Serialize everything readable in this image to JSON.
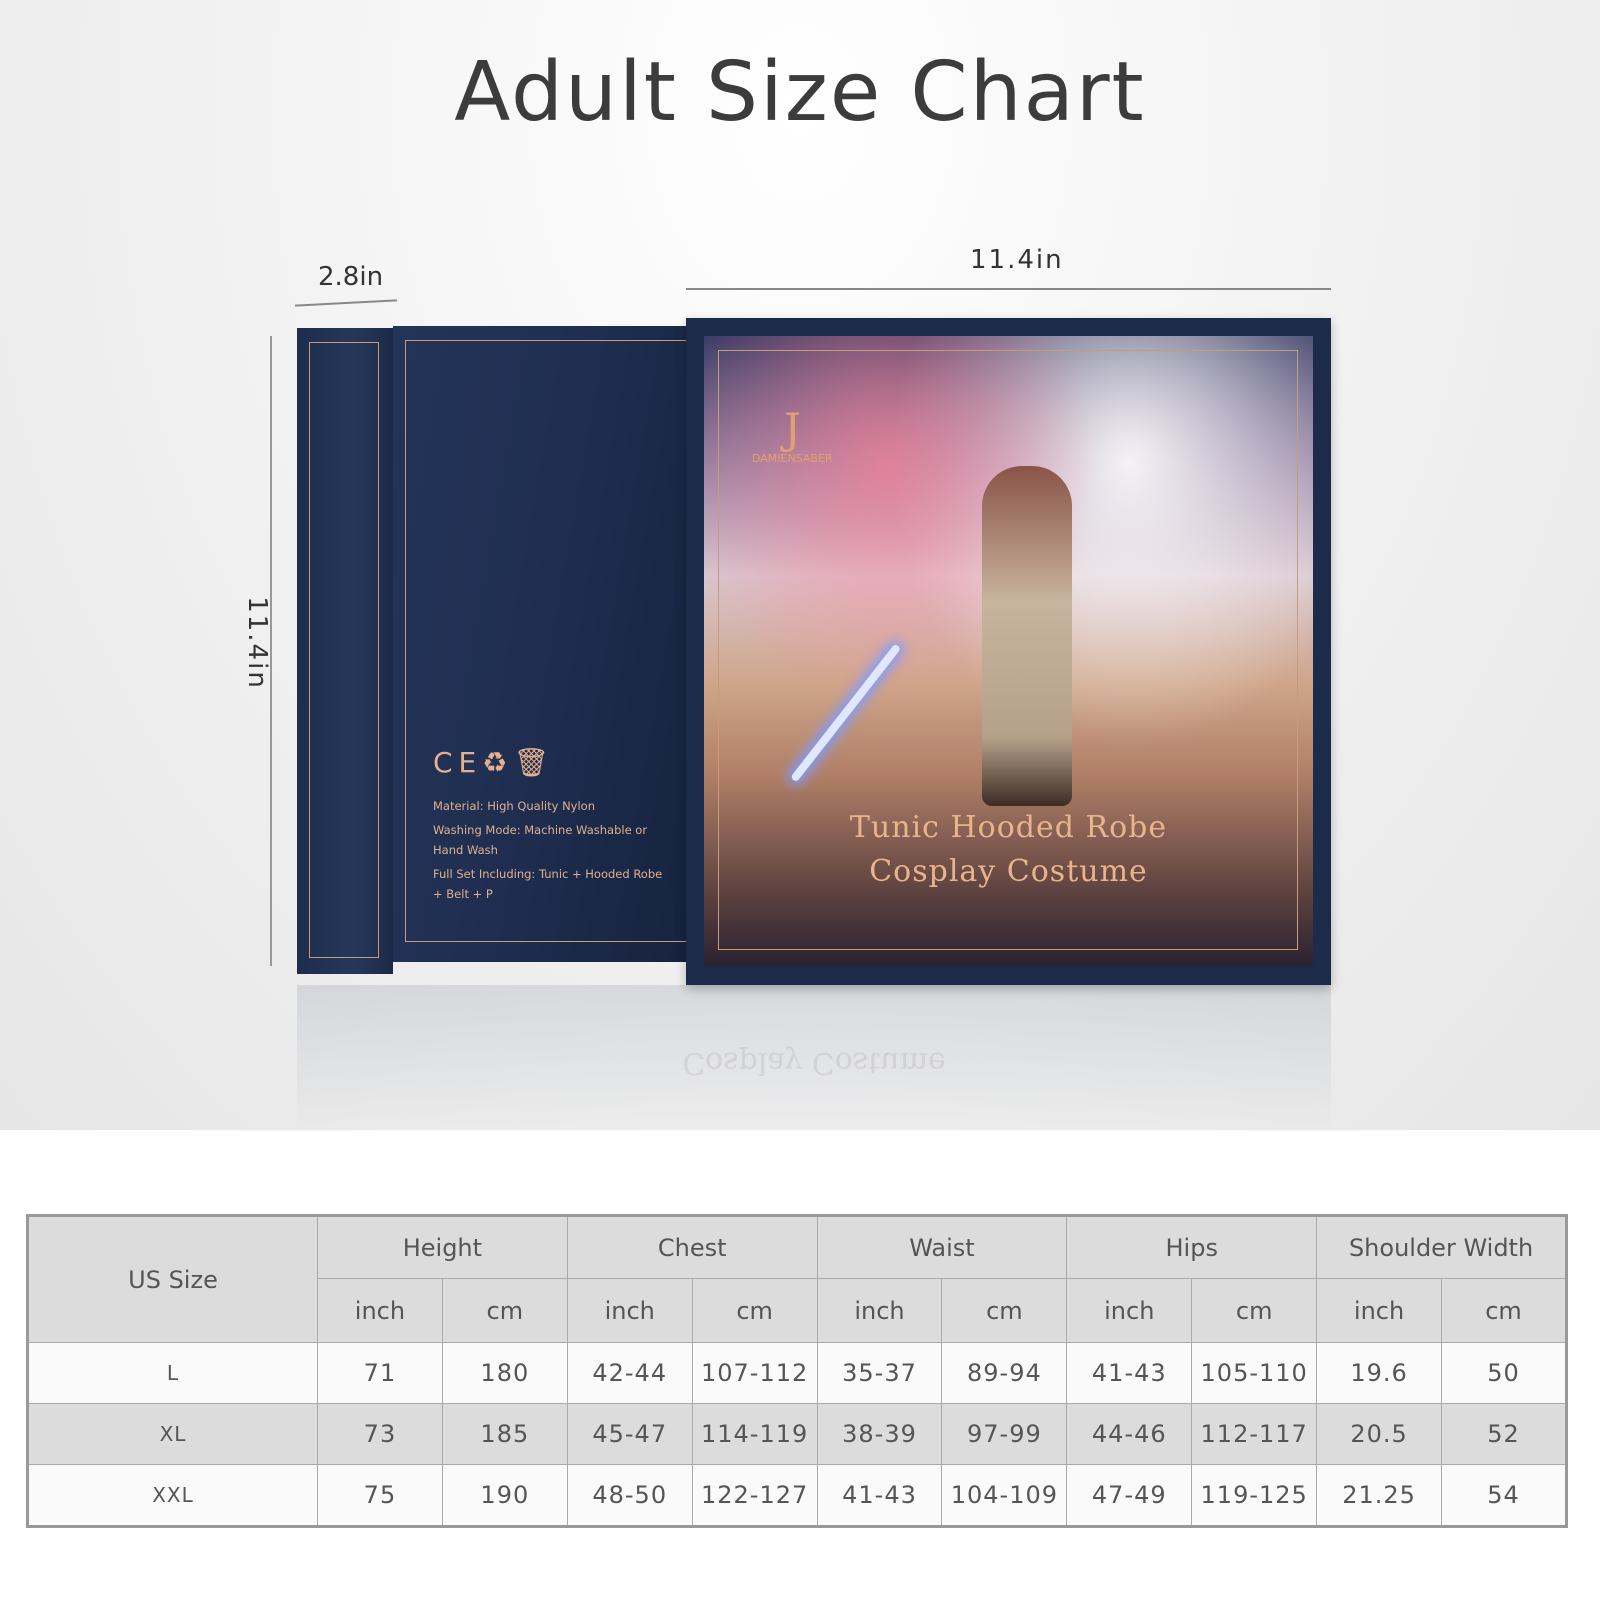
{
  "title": "Adult Size Chart",
  "dimensions": {
    "depth": "2.8in",
    "width": "11.4in",
    "height": "11.4in"
  },
  "box": {
    "brand": "DAMIENSABER",
    "product_name": [
      "Tunic Hooded Robe",
      "Cosplay Costume"
    ],
    "back_icons": [
      "ce-mark-icon",
      "recycle-icon",
      "trash-bin-icon"
    ],
    "back_lines": [
      "Material: High Quality Nylon",
      "Washing Mode: Machine Washable or Hand Wash",
      "Full Set Including: Tunic + Hooded Robe + Belt + P"
    ]
  },
  "table": {
    "size_header": "US Size",
    "groups": [
      "Height",
      "Chest",
      "Waist",
      "Hips",
      "Shoulder Width"
    ],
    "units": [
      "inch",
      "cm"
    ],
    "rows": [
      {
        "size": "L",
        "values": [
          "71",
          "180",
          "42-44",
          "107-112",
          "35-37",
          "89-94",
          "41-43",
          "105-110",
          "19.6",
          "50"
        ]
      },
      {
        "size": "XL",
        "values": [
          "73",
          "185",
          "45-47",
          "114-119",
          "38-39",
          "97-99",
          "44-46",
          "112-117",
          "20.5",
          "52"
        ]
      },
      {
        "size": "XXL",
        "values": [
          "75",
          "190",
          "48-50",
          "122-127",
          "41-43",
          "104-109",
          "47-49",
          "119-125",
          "21.25",
          "54"
        ]
      }
    ]
  }
}
